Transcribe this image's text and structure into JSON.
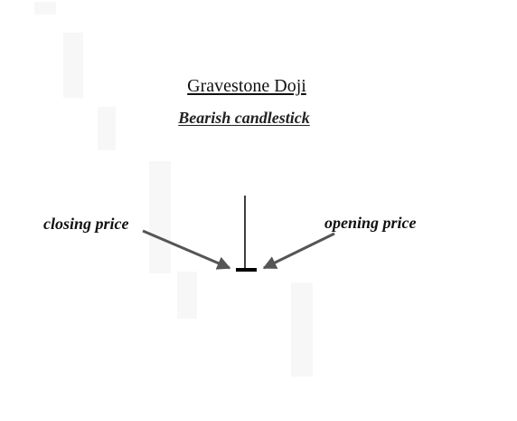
{
  "title": "Gravestone Doji",
  "subtitle": "Bearish candlestick",
  "labels": {
    "closing": "closing price",
    "opening": "opening price"
  },
  "colors": {
    "arrow": "#555555",
    "candle": "#000000",
    "text": "#111111"
  }
}
